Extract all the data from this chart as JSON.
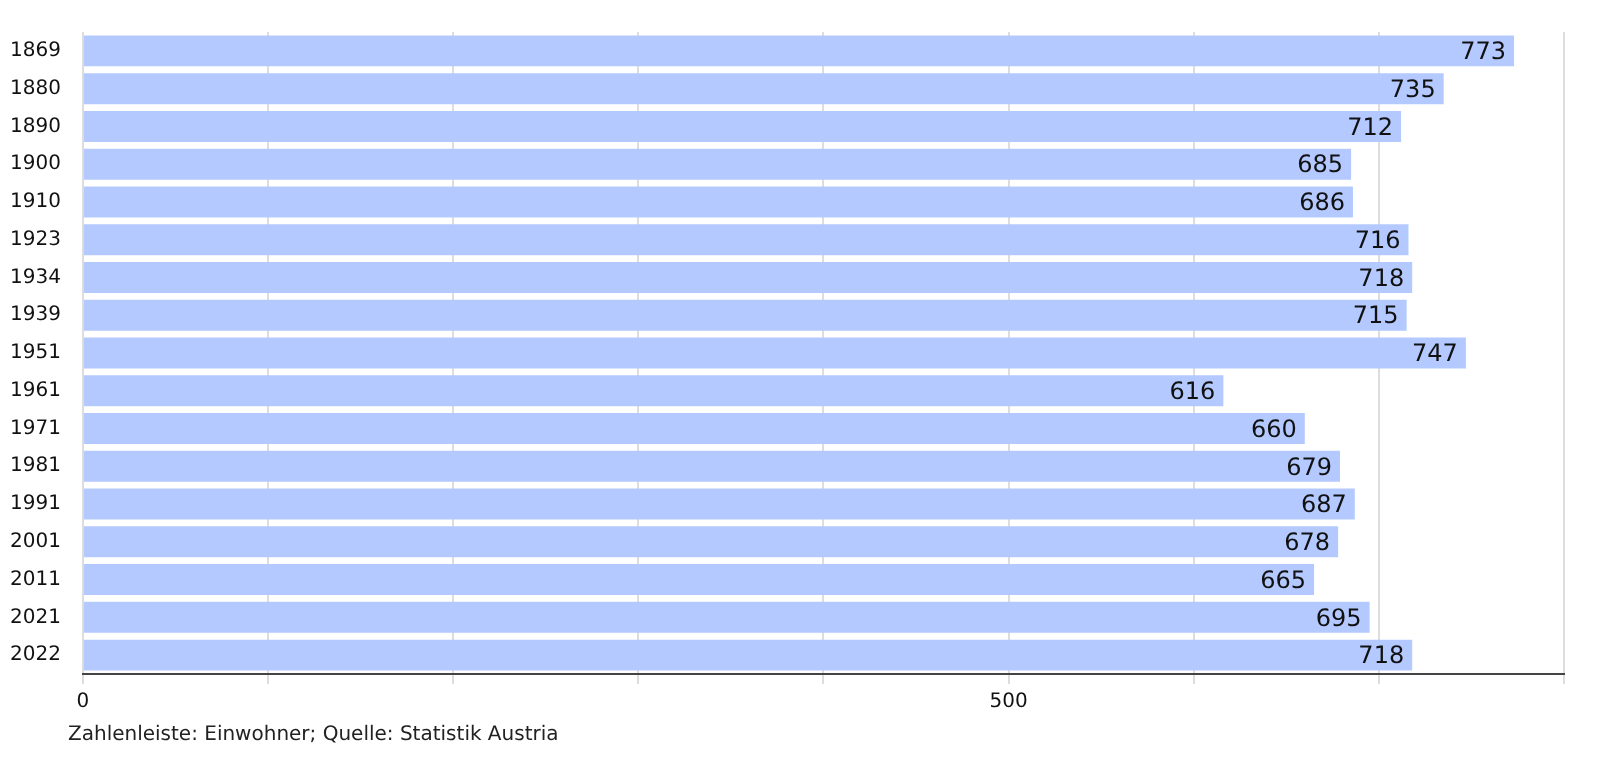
{
  "chart_data": {
    "type": "bar",
    "orientation": "horizontal",
    "categories": [
      "1869",
      "1880",
      "1890",
      "1900",
      "1910",
      "1923",
      "1934",
      "1939",
      "1951",
      "1961",
      "1971",
      "1981",
      "1991",
      "2001",
      "2011",
      "2021",
      "2022"
    ],
    "values": [
      773,
      735,
      712,
      685,
      686,
      716,
      718,
      715,
      747,
      616,
      660,
      679,
      687,
      678,
      665,
      695,
      718
    ],
    "color": "#b3c9ff",
    "xlim": [
      0,
      800
    ],
    "xticks": [
      0,
      {
        "value": 100,
        "label": null
      },
      {
        "value": 200,
        "label": null
      },
      {
        "value": 300,
        "label": null
      },
      {
        "value": 400,
        "label": null
      },
      500,
      {
        "value": 600,
        "label": null
      },
      {
        "value": 700,
        "label": null
      },
      {
        "value": 800,
        "label": null
      }
    ],
    "grid": "x",
    "data_labels": true,
    "legend": false,
    "annotations": [
      "Zahlenleiste: Einwohner; Quelle: Statistik Austria"
    ]
  }
}
